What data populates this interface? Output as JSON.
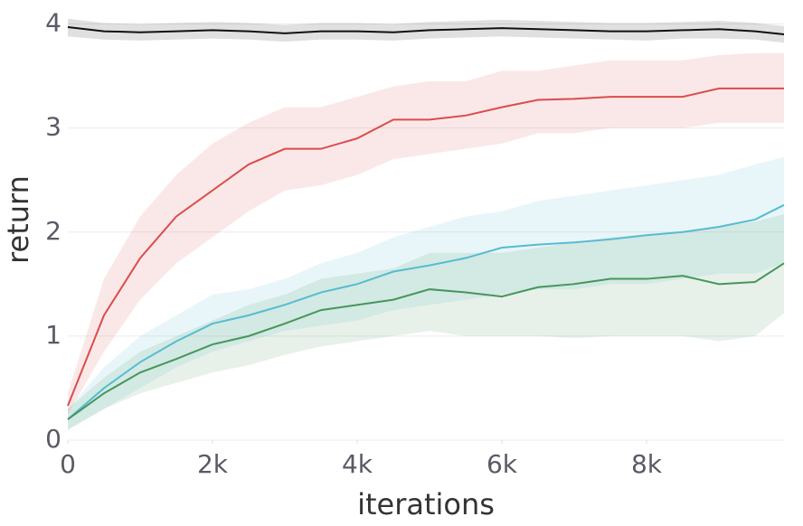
{
  "chart_data": {
    "type": "line",
    "xlabel": "iterations",
    "ylabel": "return",
    "x": [
      0,
      500,
      1000,
      1500,
      2000,
      2500,
      3000,
      3500,
      4000,
      4500,
      5000,
      5500,
      6000,
      6500,
      7000,
      7500,
      8000,
      8500,
      9000,
      9500,
      9900
    ],
    "xlim": [
      0,
      9900
    ],
    "ylim": [
      0,
      4.1
    ],
    "xticks": [
      0,
      {
        "value": 2000,
        "label": "2k"
      },
      {
        "value": 4000,
        "label": "4k"
      },
      {
        "value": 6000,
        "label": "6k"
      },
      {
        "value": 8000,
        "label": "8k"
      }
    ],
    "yticks": [
      0,
      1,
      2,
      3,
      4
    ],
    "grid": true,
    "series": [
      {
        "color": "#111111",
        "values": [
          3.97,
          3.93,
          3.92,
          3.93,
          3.94,
          3.93,
          3.91,
          3.93,
          3.93,
          3.92,
          3.94,
          3.95,
          3.96,
          3.95,
          3.94,
          3.93,
          3.93,
          3.94,
          3.95,
          3.93,
          3.9
        ],
        "lower": [
          3.88,
          3.85,
          3.84,
          3.85,
          3.86,
          3.85,
          3.83,
          3.85,
          3.85,
          3.84,
          3.86,
          3.87,
          3.88,
          3.87,
          3.86,
          3.85,
          3.84,
          3.86,
          3.86,
          3.85,
          3.82
        ],
        "upper": [
          4.05,
          4.01,
          4.0,
          4.01,
          4.02,
          4.01,
          3.99,
          4.01,
          4.01,
          4.0,
          4.02,
          4.03,
          4.04,
          4.03,
          4.02,
          4.01,
          4.01,
          4.02,
          4.03,
          4.01,
          3.98
        ]
      },
      {
        "color": "#dc4c4c",
        "values": [
          0.33,
          1.2,
          1.75,
          2.15,
          2.4,
          2.65,
          2.8,
          2.8,
          2.9,
          3.08,
          3.08,
          3.12,
          3.2,
          3.27,
          3.28,
          3.3,
          3.3,
          3.3,
          3.38,
          3.38,
          3.38
        ],
        "lower": [
          0.25,
          0.85,
          1.35,
          1.7,
          1.95,
          2.2,
          2.4,
          2.45,
          2.55,
          2.7,
          2.75,
          2.8,
          2.85,
          2.95,
          2.95,
          3.0,
          3.0,
          3.0,
          3.05,
          3.05,
          3.05
        ],
        "upper": [
          0.45,
          1.55,
          2.15,
          2.55,
          2.85,
          3.05,
          3.2,
          3.2,
          3.3,
          3.4,
          3.45,
          3.45,
          3.55,
          3.55,
          3.6,
          3.65,
          3.65,
          3.65,
          3.7,
          3.72,
          3.72
        ]
      },
      {
        "color": "#56bcd2",
        "values": [
          0.2,
          0.5,
          0.75,
          0.95,
          1.12,
          1.2,
          1.3,
          1.42,
          1.5,
          1.62,
          1.68,
          1.75,
          1.85,
          1.88,
          1.9,
          1.93,
          1.97,
          2.0,
          2.05,
          2.12,
          2.26
        ],
        "lower": [
          0.1,
          0.3,
          0.5,
          0.7,
          0.85,
          0.95,
          1.05,
          1.1,
          1.15,
          1.25,
          1.3,
          1.35,
          1.4,
          1.45,
          1.45,
          1.5,
          1.5,
          1.55,
          1.6,
          1.6,
          1.7
        ],
        "upper": [
          0.3,
          0.7,
          1.0,
          1.2,
          1.4,
          1.45,
          1.55,
          1.7,
          1.8,
          1.95,
          2.05,
          2.15,
          2.2,
          2.3,
          2.35,
          2.4,
          2.45,
          2.5,
          2.55,
          2.65,
          2.72
        ]
      },
      {
        "color": "#46965a",
        "values": [
          0.2,
          0.45,
          0.65,
          0.78,
          0.92,
          1.0,
          1.12,
          1.25,
          1.3,
          1.35,
          1.45,
          1.42,
          1.38,
          1.47,
          1.5,
          1.55,
          1.55,
          1.58,
          1.5,
          1.52,
          1.7
        ],
        "lower": [
          0.1,
          0.3,
          0.45,
          0.55,
          0.65,
          0.72,
          0.82,
          0.9,
          0.95,
          1.0,
          1.05,
          1.0,
          1.0,
          1.0,
          0.98,
          1.0,
          1.0,
          1.0,
          0.95,
          1.0,
          1.22
        ],
        "upper": [
          0.3,
          0.6,
          0.85,
          1.0,
          1.15,
          1.3,
          1.4,
          1.55,
          1.6,
          1.65,
          1.8,
          1.8,
          1.8,
          1.85,
          1.9,
          1.95,
          1.98,
          2.0,
          2.05,
          2.1,
          2.17
        ]
      }
    ]
  }
}
